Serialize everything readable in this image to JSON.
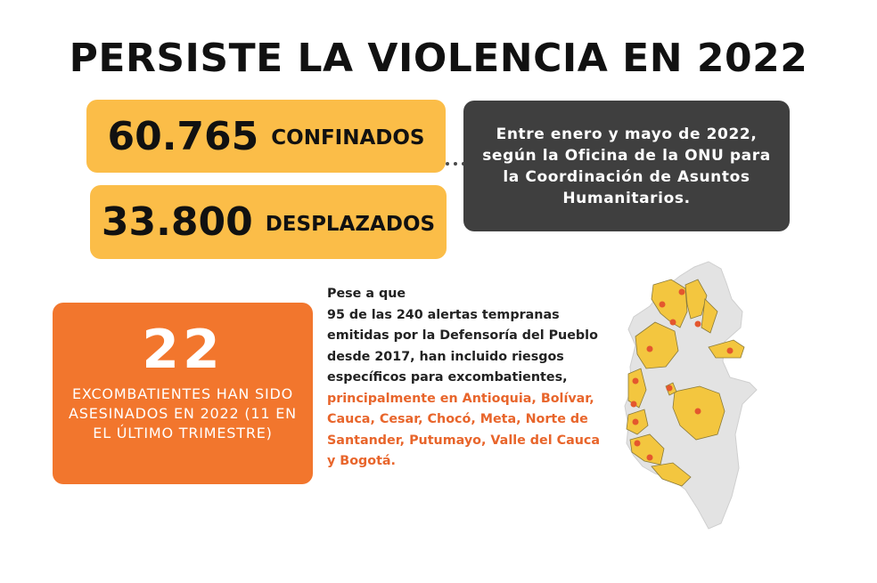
{
  "title": "PERSISTE LA VIOLENCIA EN 2022",
  "stats": {
    "confinados": {
      "number": "60.765",
      "label": "CONFINADOS"
    },
    "desplazados": {
      "number": "33.800",
      "label": "DESPLAZADOS"
    }
  },
  "info": "Entre enero y mayo de 2022, según la Oficina de la ONU para la Coordinación de Asuntos Humanitarios.",
  "excombatientes": {
    "number": "22",
    "label": "EXCOMBATIENTES HAN SIDO ASESINADOS EN 2022 (11 EN EL ÚLTIMO TRIMESTRE)"
  },
  "paragraph": {
    "intro": "Pese a que",
    "body": "95 de las 240 alertas tempranas emitidas por la Defensoría del Pueblo desde 2017, han incluido riesgos específicos para excombatientes, ",
    "highlight": "principalmente en Antioquia, Bolívar, Cauca, Cesar, Chocó, Meta, Norte de Santander, Putumayo, Valle del Cauca y Bogotá."
  },
  "colors": {
    "accent_yellow": "#fbbd48",
    "accent_orange": "#f2762d",
    "dark_box": "#3f3f3f",
    "highlight_text": "#e8652b",
    "map_gray": "#e3e3e3",
    "map_yellow": "#f3c63f",
    "map_dot": "#e4572e"
  }
}
